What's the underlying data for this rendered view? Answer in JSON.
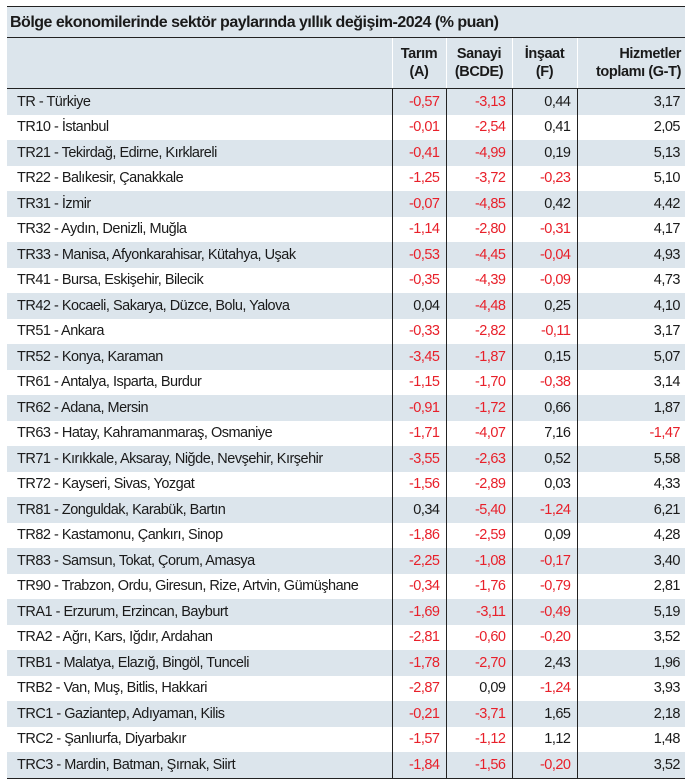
{
  "title": "Bölge ekonomilerinde sektör paylarında yıllık değişim-2024 (% puan)",
  "headers": [
    {
      "line1": "Tarım",
      "line2": "(A)"
    },
    {
      "line1": "Sanayi",
      "line2": "(BCDE)"
    },
    {
      "line1": "İnşaat",
      "line2": "(F)"
    },
    {
      "line1": "Hizmetler",
      "line2": "toplamı (G-T)"
    }
  ],
  "colors": {
    "negative": "#e8202a",
    "stripe": "#dce5ec"
  },
  "rows": [
    {
      "region": "TR - Türkiye",
      "values": [
        "-0,57",
        "-3,13",
        "0,44",
        "3,17"
      ]
    },
    {
      "region": "TR10 - İstanbul",
      "values": [
        "-0,01",
        "-2,54",
        "0,41",
        "2,05"
      ]
    },
    {
      "region": "TR21 - Tekirdağ, Edirne, Kırklareli",
      "values": [
        "-0,41",
        "-4,99",
        "0,19",
        "5,13"
      ]
    },
    {
      "region": "TR22 - Balıkesir, Çanakkale",
      "values": [
        "-1,25",
        "-3,72",
        "-0,23",
        "5,10"
      ]
    },
    {
      "region": "TR31 - İzmir",
      "values": [
        "-0,07",
        "-4,85",
        "0,42",
        "4,42"
      ]
    },
    {
      "region": "TR32 - Aydın, Denizli, Muğla",
      "values": [
        "-1,14",
        "-2,80",
        "-0,31",
        "4,17"
      ]
    },
    {
      "region": "TR33 - Manisa, Afyonkarahisar, Kütahya, Uşak",
      "values": [
        "-0,53",
        "-4,45",
        "-0,04",
        "4,93"
      ]
    },
    {
      "region": "TR41 - Bursa, Eskişehir, Bilecik",
      "values": [
        "-0,35",
        "-4,39",
        "-0,09",
        "4,73"
      ]
    },
    {
      "region": "TR42 - Kocaeli, Sakarya, Düzce, Bolu, Yalova",
      "values": [
        "0,04",
        "-4,48",
        "0,25",
        "4,10"
      ]
    },
    {
      "region": "TR51 - Ankara",
      "values": [
        "-0,33",
        "-2,82",
        "-0,11",
        "3,17"
      ]
    },
    {
      "region": "TR52 - Konya, Karaman",
      "values": [
        "-3,45",
        "-1,87",
        "0,15",
        "5,07"
      ]
    },
    {
      "region": "TR61 - Antalya, Isparta, Burdur",
      "values": [
        "-1,15",
        "-1,70",
        "-0,38",
        "3,14"
      ]
    },
    {
      "region": "TR62 - Adana, Mersin",
      "values": [
        "-0,91",
        "-1,72",
        "0,66",
        "1,87"
      ]
    },
    {
      "region": "TR63 - Hatay, Kahramanmaraş, Osmaniye",
      "values": [
        "-1,71",
        "-4,07",
        "7,16",
        "-1,47"
      ]
    },
    {
      "region": "TR71 - Kırıkkale, Aksaray, Niğde, Nevşehir, Kırşehir",
      "values": [
        "-3,55",
        "-2,63",
        "0,52",
        "5,58"
      ]
    },
    {
      "region": "TR72 - Kayseri, Sivas, Yozgat",
      "values": [
        "-1,56",
        "-2,89",
        "0,03",
        "4,33"
      ]
    },
    {
      "region": "TR81 - Zonguldak, Karabük, Bartın",
      "values": [
        "0,34",
        "-5,40",
        "-1,24",
        "6,21"
      ]
    },
    {
      "region": "TR82 - Kastamonu, Çankırı, Sinop",
      "values": [
        "-1,86",
        "-2,59",
        "0,09",
        "4,28"
      ]
    },
    {
      "region": "TR83 - Samsun, Tokat, Çorum, Amasya",
      "values": [
        "-2,25",
        "-1,08",
        "-0,17",
        "3,40"
      ]
    },
    {
      "region": "TR90 - Trabzon, Ordu, Giresun, Rize, Artvin, Gümüşhane",
      "values": [
        "-0,34",
        "-1,76",
        "-0,79",
        "2,81"
      ]
    },
    {
      "region": "TRA1 - Erzurum, Erzincan, Bayburt",
      "values": [
        "-1,69",
        "-3,11",
        "-0,49",
        "5,19"
      ]
    },
    {
      "region": "TRA2 - Ağrı, Kars, Iğdır, Ardahan",
      "values": [
        "-2,81",
        "-0,60",
        "-0,20",
        "3,52"
      ]
    },
    {
      "region": "TRB1 - Malatya, Elazığ, Bingöl, Tunceli",
      "values": [
        "-1,78",
        "-2,70",
        "2,43",
        "1,96"
      ]
    },
    {
      "region": "TRB2 - Van, Muş, Bitlis, Hakkari",
      "values": [
        "-2,87",
        "0,09",
        "-1,24",
        "3,93"
      ]
    },
    {
      "region": "TRC1 - Gaziantep, Adıyaman, Kilis",
      "values": [
        "-0,21",
        "-3,71",
        "1,65",
        "2,18"
      ]
    },
    {
      "region": "TRC2 - Şanlıurfa, Diyarbakır",
      "values": [
        "-1,57",
        "-1,12",
        "1,12",
        "1,48"
      ]
    },
    {
      "region": "TRC3 - Mardin, Batman, Şırnak, Siirt",
      "values": [
        "-1,84",
        "-1,56",
        "-0,20",
        "3,52"
      ]
    }
  ]
}
